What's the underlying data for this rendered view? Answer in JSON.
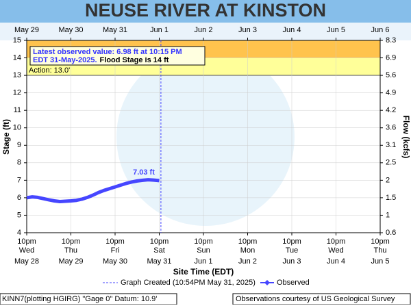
{
  "chart_data": {
    "type": "line",
    "title": "NEUSE RIVER AT KINSTON",
    "xlabel": "Site Time (EDT)",
    "ylabel": "Stage (ft)",
    "y2label": "Flow (kcfs)",
    "xlim": [
      0,
      192
    ],
    "xticks": [
      {
        "value": 0,
        "label": [
          "10pm",
          "Wed",
          "May 28"
        ]
      },
      {
        "value": 24,
        "label": [
          "10pm",
          "Thu",
          "May 29"
        ]
      },
      {
        "value": 48,
        "label": [
          "10pm",
          "Fri",
          "May 30"
        ]
      },
      {
        "value": 72,
        "label": [
          "10pm",
          "Sat",
          "May 31"
        ]
      },
      {
        "value": 96,
        "label": [
          "10pm",
          "Sun",
          "Jun 1"
        ]
      },
      {
        "value": 120,
        "label": [
          "10pm",
          "Mon",
          "Jun 2"
        ]
      },
      {
        "value": 144,
        "label": [
          "10pm",
          "Tue",
          "Jun 3"
        ]
      },
      {
        "value": 168,
        "label": [
          "10pm",
          "Wed",
          "Jun 4"
        ]
      },
      {
        "value": 192,
        "label": [
          "10pm",
          "Thu",
          "Jun 5"
        ]
      }
    ],
    "x2ticks": [
      {
        "value": 0,
        "label": "May 29"
      },
      {
        "value": 24,
        "label": "May 30"
      },
      {
        "value": 48,
        "label": "May 31"
      },
      {
        "value": 72,
        "label": "Jun 1"
      },
      {
        "value": 96,
        "label": "Jun 2"
      },
      {
        "value": 120,
        "label": "Jun 3"
      },
      {
        "value": 144,
        "label": "Jun 4"
      },
      {
        "value": 168,
        "label": "Jun 5"
      },
      {
        "value": 192,
        "label": "Jun 6"
      }
    ],
    "ylim": [
      4,
      15
    ],
    "yticks": [
      4,
      5,
      6,
      7,
      8,
      9,
      10,
      11,
      12,
      13,
      14,
      15
    ],
    "flow_ticks": {
      "stage": [
        15,
        14,
        13,
        12,
        11,
        10,
        9,
        8,
        7,
        6,
        5,
        4
      ],
      "flow": [
        8.3,
        6.9,
        5.6,
        4.9,
        4.2,
        3.6,
        3.1,
        2.5,
        2.0,
        1.5,
        1.0,
        0.6
      ]
    },
    "grid": true,
    "flood_stage": 14,
    "action_stage": 13,
    "flood_color": "#FFC34D",
    "action_color": "#FFFF99",
    "action_label": "Action: 13.0'",
    "annotation": {
      "line1": "Latest observed value: 6.98 ft at 10:15 PM",
      "line2": "EDT 31-May-2025.",
      "flood_text": "Flood Stage is 14 ft"
    },
    "created_x": 72.9,
    "created_label": "Graph Created (10:54PM May 31, 2025)",
    "series": [
      {
        "name": "Observed",
        "color": "#4646FF",
        "x": [
          0,
          3,
          6,
          9,
          12,
          15,
          18,
          21,
          24,
          27,
          30,
          33,
          36,
          39,
          42,
          45,
          48,
          51,
          54,
          57,
          60,
          63,
          66,
          69,
          72
        ],
        "values": [
          6.0,
          6.05,
          6.02,
          5.95,
          5.88,
          5.82,
          5.78,
          5.8,
          5.82,
          5.85,
          5.92,
          6.02,
          6.15,
          6.3,
          6.42,
          6.52,
          6.62,
          6.72,
          6.82,
          6.9,
          6.96,
          7.0,
          7.03,
          7.01,
          6.98
        ]
      }
    ],
    "peak_label": "7.03 ft",
    "footer_left": "KINN7(plotting HGIRG) \"Gage 0\" Datum: 10.9'",
    "footer_right": "Observations courtesy of US Geological Survey"
  }
}
